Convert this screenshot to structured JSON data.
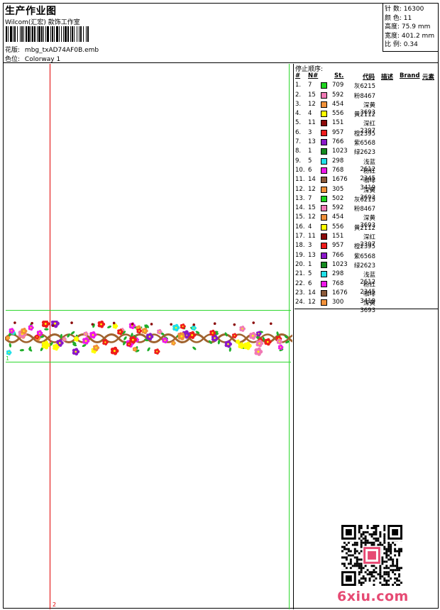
{
  "header": {
    "title": "生产作业图",
    "company": "Wilcom(汇宏) 款饰工作室",
    "design_label": "花版:",
    "design_file": "mbg_txAD74AF0B.emb",
    "colorway_label": "色位:",
    "colorway": "Colorway 1"
  },
  "stats": [
    {
      "label": "针 数:",
      "value": "16300"
    },
    {
      "label": "颜 色:",
      "value": "11"
    },
    {
      "label": "高度:",
      "value": "75.9 mm"
    },
    {
      "label": "宽度:",
      "value": "401.2 mm"
    },
    {
      "label": "比 例:",
      "value": "0.34"
    }
  ],
  "stop_sequence": {
    "title": "停止顺序:",
    "headers": {
      "num": "#",
      "needle": "N#",
      "stitches": "St.",
      "code": "代码",
      "desc": "描述",
      "brand": "Brand",
      "element": "元素"
    },
    "rows": [
      {
        "n": "1.",
        "needle": "7",
        "color": "#1fd41f",
        "st": "709",
        "code": "灰6215"
      },
      {
        "n": "2.",
        "needle": "15",
        "color": "#f07ab5",
        "st": "592",
        "code": "粉8467"
      },
      {
        "n": "3.",
        "needle": "12",
        "color": "#f0913a",
        "st": "454",
        "code": "深黄3693"
      },
      {
        "n": "4.",
        "needle": "4",
        "color": "#ffff00",
        "st": "556",
        "code": "黄2112"
      },
      {
        "n": "5.",
        "needle": "11",
        "color": "#8b0a0a",
        "st": "151",
        "code": "深红2397"
      },
      {
        "n": "6.",
        "needle": "3",
        "color": "#ee1c1c",
        "st": "957",
        "code": "橙2395"
      },
      {
        "n": "7.",
        "needle": "13",
        "color": "#8a18c8",
        "st": "766",
        "code": "紫6568"
      },
      {
        "n": "8.",
        "needle": "1",
        "color": "#158a20",
        "st": "1023",
        "code": "绿2623"
      },
      {
        "n": "9.",
        "needle": "5",
        "color": "#22e0e8",
        "st": "298",
        "code": "浅蓝2612"
      },
      {
        "n": "10.",
        "needle": "6",
        "color": "#ee18e8",
        "st": "768",
        "code": "粉红2345"
      },
      {
        "n": "11.",
        "needle": "14",
        "color": "#8b5a3a",
        "st": "1676",
        "code": "咖啡3419"
      },
      {
        "n": "12.",
        "needle": "12",
        "color": "#f0913a",
        "st": "305",
        "code": "深黄3693"
      },
      {
        "n": "13.",
        "needle": "7",
        "color": "#1fd41f",
        "st": "502",
        "code": "灰6215"
      },
      {
        "n": "14.",
        "needle": "15",
        "color": "#f07ab5",
        "st": "592",
        "code": "粉8467"
      },
      {
        "n": "15.",
        "needle": "12",
        "color": "#f0913a",
        "st": "454",
        "code": "深黄3693"
      },
      {
        "n": "16.",
        "needle": "4",
        "color": "#ffff00",
        "st": "556",
        "code": "黄2112"
      },
      {
        "n": "17.",
        "needle": "11",
        "color": "#8b0a0a",
        "st": "151",
        "code": "深红2397"
      },
      {
        "n": "18.",
        "needle": "3",
        "color": "#ee1c1c",
        "st": "957",
        "code": "橙2395"
      },
      {
        "n": "19.",
        "needle": "13",
        "color": "#8a18c8",
        "st": "766",
        "code": "紫6568"
      },
      {
        "n": "20.",
        "needle": "1",
        "color": "#158a20",
        "st": "1023",
        "code": "绿2623"
      },
      {
        "n": "21.",
        "needle": "5",
        "color": "#22e0e8",
        "st": "298",
        "code": "浅蓝2612"
      },
      {
        "n": "22.",
        "needle": "6",
        "color": "#ee18e8",
        "st": "768",
        "code": "粉红2345"
      },
      {
        "n": "23.",
        "needle": "14",
        "color": "#8b5a3a",
        "st": "1676",
        "code": "咖啡3419"
      },
      {
        "n": "24.",
        "needle": "12",
        "color": "#f0913a",
        "st": "300",
        "code": "深黄3693"
      }
    ]
  },
  "canvas": {
    "guide_label_1": "1",
    "guide_label_2": "2",
    "guide_color_red": "#e00000",
    "guide_color_green": "#2ed82e"
  },
  "watermark": {
    "text": "6xiu.com"
  },
  "colors": {
    "stem": "#a0632f",
    "leaf": "#1fae2a"
  }
}
